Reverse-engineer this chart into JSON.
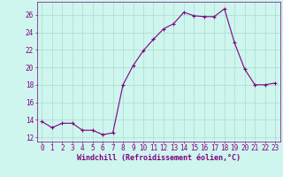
{
  "x": [
    0,
    1,
    2,
    3,
    4,
    5,
    6,
    7,
    8,
    9,
    10,
    11,
    12,
    13,
    14,
    15,
    16,
    17,
    18,
    19,
    20,
    21,
    22,
    23
  ],
  "y": [
    13.8,
    13.1,
    13.6,
    13.6,
    12.8,
    12.8,
    12.3,
    12.5,
    18.0,
    20.2,
    21.9,
    23.2,
    24.4,
    25.0,
    26.3,
    25.9,
    25.8,
    25.8,
    26.7,
    22.8,
    19.8,
    18.0,
    18.0,
    18.2
  ],
  "line_color": "#800080",
  "marker_color": "#800080",
  "bg_color": "#cef5ee",
  "grid_color": "#aaddcc",
  "xlabel": "Windchill (Refroidissement éolien,°C)",
  "ylabel_ticks": [
    12,
    14,
    16,
    18,
    20,
    22,
    24,
    26
  ],
  "ylim": [
    11.5,
    27.5
  ],
  "xlim": [
    -0.5,
    23.5
  ],
  "tick_color": "#800080",
  "label_color": "#800080",
  "font_size": 5.5,
  "xlabel_font_size": 6.0
}
